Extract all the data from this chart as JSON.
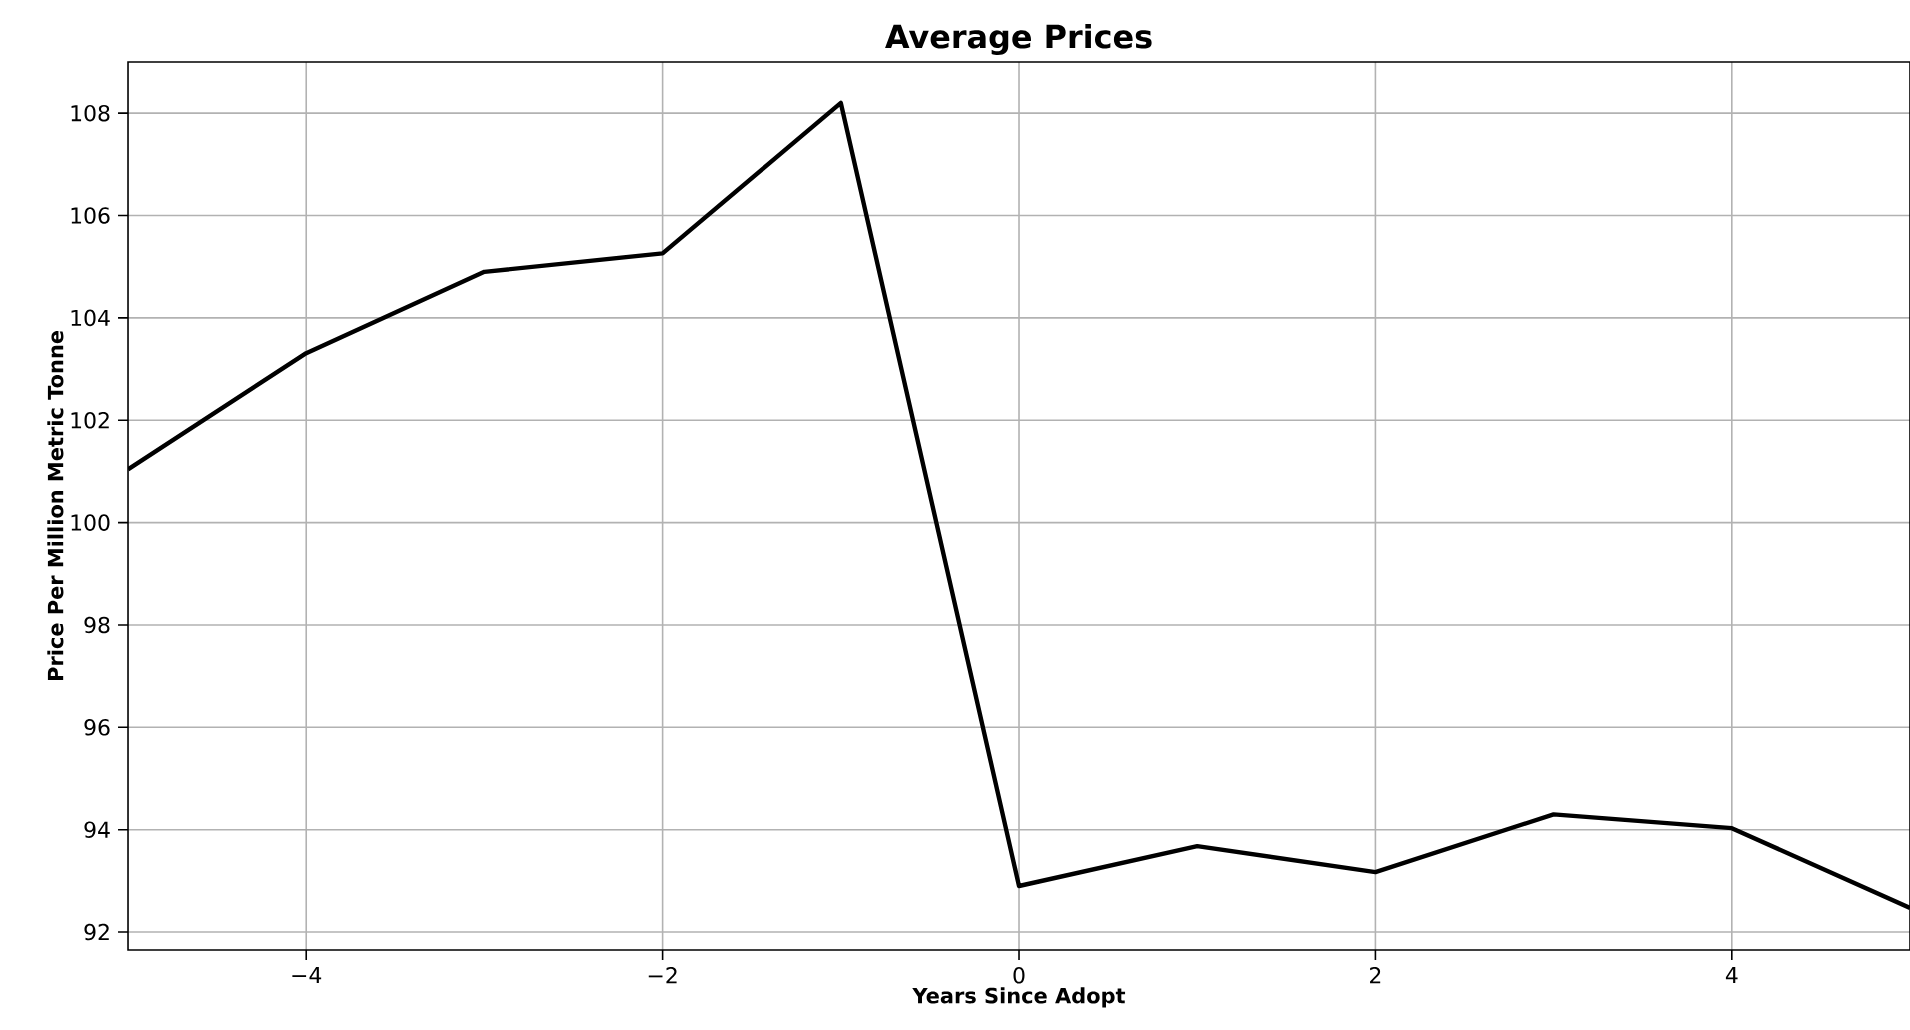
{
  "chart_data": {
    "type": "line",
    "title": "Average Prices",
    "xlabel": "Years Since Adopt",
    "ylabel": "Price Per Million Metric Tonne",
    "x": [
      -5,
      -4,
      -3,
      -2,
      -1,
      0,
      1,
      2,
      3,
      4,
      5
    ],
    "series": [
      {
        "color": "#000000",
        "values": [
          101.04,
          103.31,
          104.9,
          105.26,
          108.2,
          92.9,
          93.68,
          93.17,
          94.3,
          94.03,
          92.47
        ]
      }
    ],
    "xlim": [
      -5,
      5
    ],
    "ylim": [
      91.65,
      109
    ],
    "xticks": [
      {
        "value": -4,
        "label": "−4"
      },
      {
        "value": -2,
        "label": "−2"
      },
      0,
      2,
      4
    ],
    "yticks": [
      92,
      94,
      96,
      98,
      100,
      102,
      104,
      106,
      108
    ],
    "grid": true,
    "marker": "none",
    "line_style": "solid"
  }
}
